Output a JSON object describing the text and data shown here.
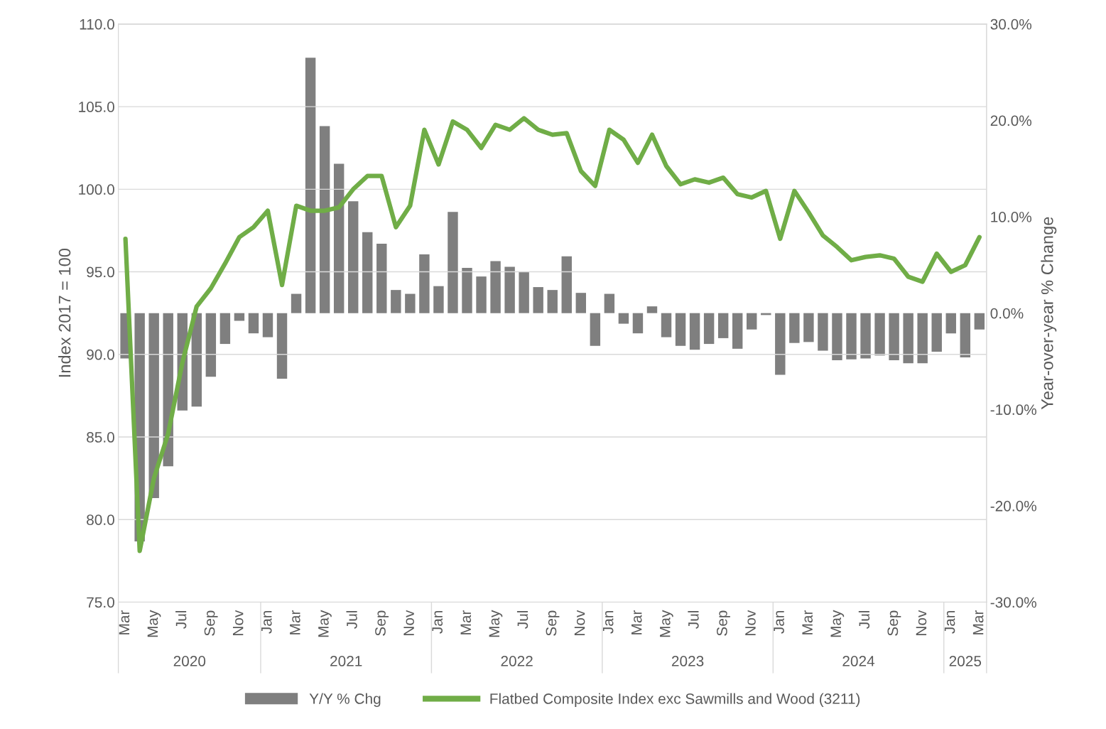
{
  "chart_data": {
    "type": "bar",
    "ylabel": "Index 2017 = 100",
    "y2label": "Year-over-year % Change",
    "x": [
      "2020-03",
      "2020-04",
      "2020-05",
      "2020-06",
      "2020-07",
      "2020-08",
      "2020-09",
      "2020-10",
      "2020-11",
      "2020-12",
      "2021-01",
      "2021-02",
      "2021-03",
      "2021-04",
      "2021-05",
      "2021-06",
      "2021-07",
      "2021-08",
      "2021-09",
      "2021-10",
      "2021-11",
      "2021-12",
      "2022-01",
      "2022-02",
      "2022-03",
      "2022-04",
      "2022-05",
      "2022-06",
      "2022-07",
      "2022-08",
      "2022-09",
      "2022-10",
      "2022-11",
      "2022-12",
      "2023-01",
      "2023-02",
      "2023-03",
      "2023-04",
      "2023-05",
      "2023-06",
      "2023-07",
      "2023-08",
      "2023-09",
      "2023-10",
      "2023-11",
      "2023-12",
      "2024-01",
      "2024-02",
      "2024-03",
      "2024-04",
      "2024-05",
      "2024-06",
      "2024-07",
      "2024-08",
      "2024-09",
      "2024-10",
      "2024-11",
      "2024-12",
      "2025-01",
      "2025-02",
      "2025-03"
    ],
    "xlim": [
      "2020-02-16",
      "2025-03-16"
    ],
    "xticks": [
      {
        "value": "2020-03",
        "label": "Mar"
      },
      {
        "value": "2020-05",
        "label": "May"
      },
      {
        "value": "2020-07",
        "label": "Jul"
      },
      {
        "value": "2020-09",
        "label": "Sep"
      },
      {
        "value": "2020-11",
        "label": "Nov"
      },
      {
        "value": "2021-01",
        "label": "Jan"
      },
      {
        "value": "2021-03",
        "label": "Mar"
      },
      {
        "value": "2021-05",
        "label": "May"
      },
      {
        "value": "2021-07",
        "label": "Jul"
      },
      {
        "value": "2021-09",
        "label": "Sep"
      },
      {
        "value": "2021-11",
        "label": "Nov"
      },
      {
        "value": "2022-01",
        "label": "Jan"
      },
      {
        "value": "2022-03",
        "label": "Mar"
      },
      {
        "value": "2022-05",
        "label": "May"
      },
      {
        "value": "2022-07",
        "label": "Jul"
      },
      {
        "value": "2022-09",
        "label": "Sep"
      },
      {
        "value": "2022-11",
        "label": "Nov"
      },
      {
        "value": "2023-01",
        "label": "Jan"
      },
      {
        "value": "2023-03",
        "label": "Mar"
      },
      {
        "value": "2023-05",
        "label": "May"
      },
      {
        "value": "2023-07",
        "label": "Jul"
      },
      {
        "value": "2023-09",
        "label": "Sep"
      },
      {
        "value": "2023-11",
        "label": "Nov"
      },
      {
        "value": "2024-01",
        "label": "Jan"
      },
      {
        "value": "2024-03",
        "label": "Mar"
      },
      {
        "value": "2024-05",
        "label": "May"
      },
      {
        "value": "2024-07",
        "label": "Jul"
      },
      {
        "value": "2024-09",
        "label": "Sep"
      },
      {
        "value": "2024-11",
        "label": "Nov"
      },
      {
        "value": "2025-01",
        "label": "Jan"
      },
      {
        "value": "2025-03",
        "label": "Mar"
      }
    ],
    "ylim": [
      75,
      110
    ],
    "yticks": [
      {
        "value": 75,
        "label": "75.0"
      },
      {
        "value": 80,
        "label": "80.0"
      },
      {
        "value": 85,
        "label": "85.0"
      },
      {
        "value": 90,
        "label": "90.0"
      },
      {
        "value": 95,
        "label": "95.0"
      },
      {
        "value": 100,
        "label": "100.0"
      },
      {
        "value": 105,
        "label": "105.0"
      },
      {
        "value": 110,
        "label": "110.0"
      }
    ],
    "y2lim": [
      -30,
      30
    ],
    "y2ticks": [
      {
        "value": -30,
        "label": "-30.0%"
      },
      {
        "value": -20,
        "label": "-20.0%"
      },
      {
        "value": -10,
        "label": "-10.0%"
      },
      {
        "value": 0,
        "label": "0.0%"
      },
      {
        "value": 10,
        "label": "10.0%"
      },
      {
        "value": 20,
        "label": "20.0%"
      },
      {
        "value": 30,
        "label": "30.0%"
      }
    ],
    "series": [
      {
        "name": "Y/Y % Chg",
        "axis": "y2",
        "color": "#7f7f7f",
        "values": [
          -4.7,
          -23.7,
          -19.2,
          -15.9,
          -10.1,
          -9.7,
          -6.6,
          -3.2,
          -0.8,
          -2.1,
          -2.5,
          -6.8,
          2.0,
          26.5,
          19.4,
          15.5,
          11.6,
          8.4,
          7.2,
          2.4,
          2.0,
          6.1,
          2.8,
          10.5,
          4.7,
          3.8,
          5.4,
          4.8,
          4.3,
          2.7,
          2.4,
          5.9,
          2.1,
          -3.4,
          2.0,
          -1.1,
          -2.1,
          0.7,
          -2.5,
          -3.4,
          -3.8,
          -3.2,
          -2.6,
          -3.7,
          -1.7,
          -0.2,
          -6.4,
          -3.1,
          -3.0,
          -3.9,
          -4.9,
          -4.8,
          -4.7,
          -4.4,
          -4.9,
          -5.2,
          -5.2,
          -4.0,
          -2.1,
          -4.6,
          -1.7
        ]
      },
      {
        "name": "Flatbed Composite Index exc Sawmills and Wood (3211)",
        "type": "line",
        "axis": "y",
        "color": "#70ad47",
        "values": [
          97.0,
          78.1,
          82.5,
          85.2,
          89.5,
          92.9,
          94.0,
          95.5,
          97.1,
          97.7,
          98.7,
          94.2,
          99.0,
          98.7,
          98.7,
          98.9,
          100.0,
          100.8,
          100.8,
          97.7,
          99.0,
          103.6,
          101.5,
          104.1,
          103.6,
          102.5,
          103.9,
          103.6,
          104.3,
          103.6,
          103.3,
          103.4,
          101.1,
          100.2,
          103.6,
          103.0,
          101.6,
          103.3,
          101.4,
          100.3,
          100.6,
          100.4,
          100.7,
          99.7,
          99.5,
          99.9,
          97.0,
          99.9,
          98.6,
          97.2,
          96.5,
          95.7,
          95.9,
          96.0,
          95.8,
          94.7,
          94.4,
          96.1,
          95.0,
          95.4,
          97.1
        ]
      }
    ],
    "annotations": [
      "2020",
      "2021",
      "2022",
      "2023",
      "2024",
      "2025"
    ],
    "grid": "y",
    "legend": "bottom",
    "line_style": "solid",
    "marker": "none"
  }
}
